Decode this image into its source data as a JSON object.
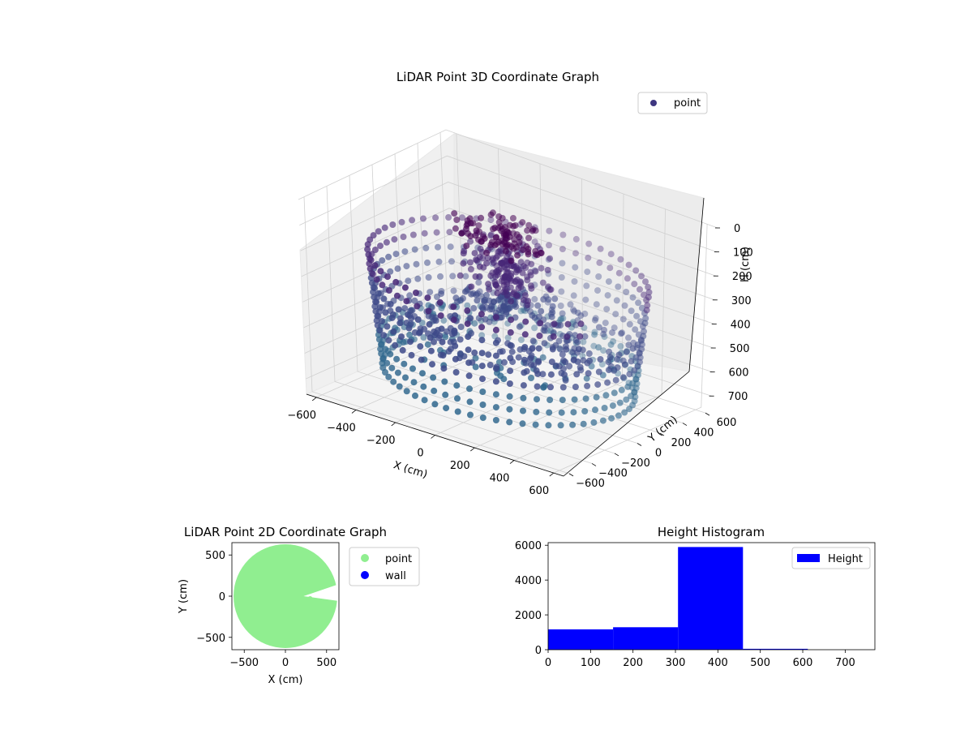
{
  "chart_data": [
    {
      "type": "scatter",
      "projection": "3d",
      "title": "LiDAR Point 3D Coordinate Graph",
      "xlabel": "X (cm)",
      "ylabel": "Y (cm)",
      "zlabel": "H (cm)",
      "xticks": [
        "−600",
        "−400",
        "−200",
        "0",
        "200",
        "400",
        "600"
      ],
      "yticks": [
        "−600",
        "−400",
        "−200",
        "0",
        "200",
        "400",
        "600"
      ],
      "zticks": [
        "0",
        "100",
        "200",
        "300",
        "400",
        "500",
        "600",
        "700"
      ],
      "xlim": [
        -650,
        650
      ],
      "ylim": [
        -650,
        650
      ],
      "zlim": [
        0,
        760
      ],
      "z_axis_inverted": true,
      "grid": true,
      "legend": {
        "position": "top-right",
        "entries": [
          "point"
        ]
      },
      "colormap": [
        "#440154",
        "#482878",
        "#3e4a89",
        "#31688e",
        "#26828e"
      ],
      "series": [
        {
          "name": "point",
          "description_of_shape": "rings of points at radius ~600 cm plus a dense central cluster",
          "points_sample": [
            {
              "x": -600,
              "y": 0,
              "h": 400
            },
            {
              "x": 600,
              "y": 0,
              "h": 400
            },
            {
              "x": 0,
              "y": -600,
              "h": 400
            },
            {
              "x": 0,
              "y": 600,
              "h": 400
            },
            {
              "x": 0,
              "y": 0,
              "h": 200
            }
          ]
        }
      ]
    },
    {
      "type": "scatter",
      "title": "LiDAR Point 2D Coordinate Graph",
      "xlabel": "X (cm)",
      "ylabel": "Y (cm)",
      "xticks": [
        "−500",
        "0",
        "500"
      ],
      "yticks": [
        "−500",
        "0",
        "500"
      ],
      "xlim": [
        -650,
        650
      ],
      "ylim": [
        -650,
        650
      ],
      "legend": {
        "position": "outside-right",
        "entries": [
          "point",
          "wall"
        ]
      },
      "series": [
        {
          "name": "point",
          "color": "#90ee90",
          "shape": "filled disc of radius ~630 cm with a wedge cut-out near +X"
        },
        {
          "name": "wall",
          "color": "#0000ff"
        }
      ]
    },
    {
      "type": "bar",
      "subtype": "histogram",
      "title": "Height Histogram",
      "xticks": [
        "0",
        "100",
        "200",
        "300",
        "400",
        "500",
        "600",
        "700"
      ],
      "yticks": [
        "0",
        "2000",
        "4000",
        "6000"
      ],
      "xlim": [
        0,
        770
      ],
      "ylim": [
        0,
        6150
      ],
      "bin_edges": [
        0,
        153,
        306,
        459,
        612,
        765
      ],
      "values": [
        1170,
        1290,
        5900,
        50,
        0
      ],
      "color": "#0000ff",
      "legend": {
        "position": "top-right",
        "entries": [
          "Height"
        ]
      }
    }
  ]
}
